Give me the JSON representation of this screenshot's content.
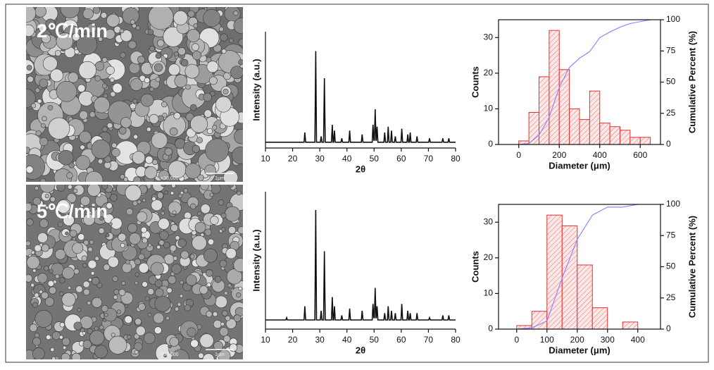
{
  "images": [
    {
      "label": "2℃/min",
      "magnification": "×30,000",
      "scale_bar": "1μm"
    },
    {
      "label": "5℃/min",
      "magnification": "×30,000",
      "scale_bar": "1μm"
    }
  ],
  "chart_data": [
    {
      "type": "line",
      "x_label": "2θ",
      "y_label": "Intensity (a.u.)",
      "color": "#111111",
      "xlim": [
        10,
        80
      ],
      "xticks": [
        10,
        20,
        30,
        40,
        50,
        60,
        70,
        80
      ],
      "ylim": [
        0,
        60
      ],
      "x": [
        10,
        24.2,
        24.5,
        24.8,
        28.2,
        28.5,
        28.8,
        30.2,
        30.5,
        30.8,
        31.4,
        31.7,
        32,
        34.3,
        34.6,
        34.9,
        35.1,
        35.4,
        35.7,
        37.8,
        38.1,
        38.4,
        40.7,
        41,
        41.3,
        45.3,
        45.6,
        45.9,
        49.3,
        49.6,
        49.9,
        50.1,
        50.4,
        50.7,
        50.8,
        51.1,
        51.4,
        53.6,
        53.9,
        54.2,
        54.9,
        55.2,
        55.5,
        56.1,
        56.4,
        56.7,
        57.5,
        57.8,
        58.1,
        59.9,
        60.2,
        60.5,
        62.1,
        62.4,
        62.7,
        63,
        63.3,
        63.6,
        65.5,
        65.8,
        66.1,
        70.1,
        70.4,
        70.7,
        75,
        75.3,
        75.6,
        77.2,
        77.5,
        77.8,
        80
      ],
      "values": [
        3,
        3,
        8,
        3,
        3,
        50,
        3,
        3,
        6,
        3,
        3,
        36,
        3,
        3,
        12,
        3,
        3,
        9,
        3,
        3,
        5,
        3,
        3,
        9,
        3,
        3,
        7,
        3,
        3,
        12,
        4,
        4,
        20,
        4,
        4,
        11,
        3,
        3,
        8,
        3,
        3,
        11,
        3,
        3,
        9,
        3,
        3,
        6,
        3,
        3,
        10,
        3,
        3,
        7,
        3,
        3,
        8,
        3,
        3,
        6,
        3,
        3,
        5,
        3,
        3,
        5,
        3,
        3,
        5,
        3,
        3
      ]
    },
    {
      "type": "histogram",
      "x_label": "Diameter (μm)",
      "y_label": "Counts",
      "y2_label": "Cumulative Percent (%)",
      "color": "#e03030",
      "xlim": [
        -100,
        700
      ],
      "xticks": [
        0,
        200,
        400,
        600
      ],
      "ylim": [
        0,
        35
      ],
      "yticks": [
        0,
        10,
        20,
        30
      ],
      "y2lim": [
        0,
        100
      ],
      "y2ticks": [
        0,
        25,
        50,
        75,
        100
      ],
      "bins": [
        0,
        50,
        100,
        150,
        200,
        250,
        300,
        350,
        400,
        450,
        500,
        550,
        600,
        650
      ],
      "values": [
        1,
        9,
        19,
        32,
        21,
        10,
        7,
        15,
        6,
        5,
        4,
        2,
        2
      ],
      "cumulative": {
        "axis": "y2",
        "color": "#8a8aff",
        "x": [
          0,
          50,
          100,
          150,
          200,
          250,
          300,
          350,
          400,
          450,
          500,
          550,
          600,
          650
        ],
        "values": [
          0,
          0.8,
          7.5,
          21.8,
          45.9,
          61.7,
          69.2,
          74.4,
          85.7,
          90.2,
          94,
          97,
          98.5,
          100
        ]
      }
    },
    {
      "type": "line",
      "x_label": "2θ",
      "y_label": "Intensity (a.u.)",
      "color": "#111111",
      "xlim": [
        10,
        80
      ],
      "xticks": [
        10,
        20,
        30,
        40,
        50,
        60,
        70,
        80
      ],
      "ylim": [
        0,
        60
      ],
      "x": [
        10,
        17.5,
        17.8,
        18.1,
        24.2,
        24.5,
        24.8,
        28.2,
        28.5,
        28.8,
        30.2,
        30.5,
        30.8,
        31.4,
        31.7,
        32,
        34.3,
        34.6,
        34.9,
        35.1,
        35.4,
        35.7,
        37.8,
        38.1,
        38.4,
        40.7,
        41,
        41.3,
        45.3,
        45.6,
        45.9,
        49.3,
        49.6,
        49.9,
        50.1,
        50.4,
        50.7,
        50.8,
        51.1,
        51.4,
        53.6,
        53.9,
        54.2,
        54.9,
        55.2,
        55.5,
        56.1,
        56.4,
        56.7,
        57.5,
        57.8,
        58.1,
        59.9,
        60.2,
        60.5,
        62.1,
        62.4,
        62.7,
        63,
        63.3,
        63.6,
        65.5,
        65.8,
        66.1,
        70.1,
        70.4,
        70.7,
        75,
        75.3,
        75.6,
        77.2,
        77.5,
        77.8,
        80
      ],
      "values": [
        4,
        4,
        5,
        4,
        4,
        10,
        4,
        4,
        52,
        4,
        4,
        8,
        4,
        4,
        34,
        4,
        4,
        14,
        4,
        4,
        10,
        4,
        4,
        6,
        4,
        4,
        9,
        4,
        4,
        8,
        4,
        4,
        11,
        5,
        5,
        18,
        5,
        5,
        10,
        4,
        4,
        7,
        4,
        4,
        10,
        4,
        4,
        8,
        4,
        4,
        7,
        4,
        4,
        11,
        4,
        4,
        8,
        4,
        4,
        7,
        4,
        4,
        7,
        4,
        4,
        5,
        4,
        4,
        6,
        4,
        4,
        6,
        4,
        4
      ]
    },
    {
      "type": "histogram",
      "x_label": "Diameter (μm)",
      "y_label": "Counts",
      "y2_label": "Cumulative Percent (%)",
      "color": "#e03030",
      "xlim": [
        -60,
        475
      ],
      "xticks": [
        0,
        100,
        200,
        300,
        400
      ],
      "ylim": [
        0,
        35
      ],
      "yticks": [
        0,
        10,
        20,
        30
      ],
      "y2lim": [
        0,
        100
      ],
      "y2ticks": [
        0,
        25,
        50,
        75,
        100
      ],
      "bins": [
        0,
        50,
        100,
        150,
        200,
        250,
        300,
        350,
        400
      ],
      "values": [
        1,
        5,
        32,
        29,
        18,
        6,
        0,
        2
      ],
      "cumulative": {
        "axis": "y2",
        "color": "#8a8aff",
        "x": [
          0,
          50,
          100,
          150,
          200,
          250,
          300,
          350,
          400
        ],
        "values": [
          0,
          1.1,
          6.5,
          40.9,
          72,
          91.4,
          97.8,
          97.8,
          100
        ]
      }
    }
  ]
}
